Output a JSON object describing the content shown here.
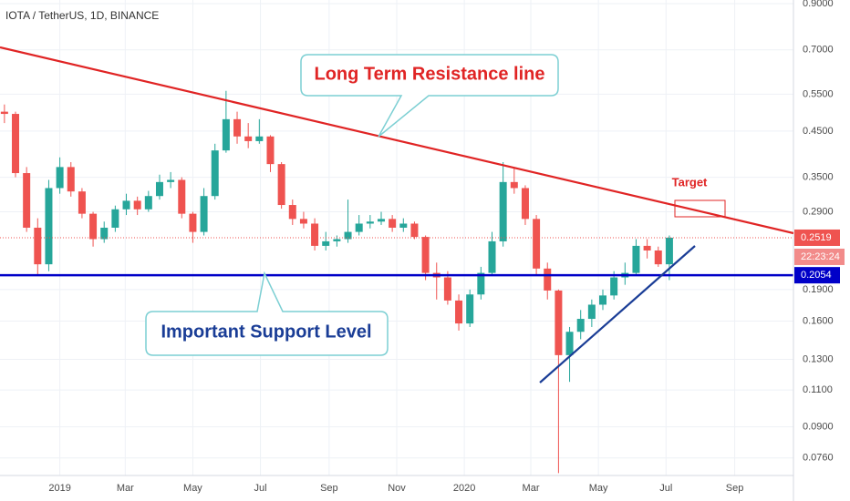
{
  "chart_data": {
    "type": "candlestick",
    "title": "IOTA / TetherUS, 1D, BINANCE",
    "x": [
      -50,
      -40,
      -30,
      -20,
      -10,
      0,
      10,
      20,
      30,
      40,
      50,
      60,
      70,
      80,
      90,
      100,
      110,
      120,
      130,
      140,
      150,
      160,
      170,
      180,
      190,
      200,
      210,
      220,
      230,
      240,
      250,
      260,
      270,
      280,
      290,
      300,
      310,
      320,
      330,
      340,
      350,
      360,
      370,
      380,
      390,
      400,
      410,
      420,
      430,
      440,
      450,
      460,
      470,
      480,
      490,
      500,
      510,
      520,
      530,
      540,
      550
    ],
    "open": [
      0.5,
      0.494,
      0.358,
      0.266,
      0.218,
      0.33,
      0.37,
      0.324,
      0.287,
      0.25,
      0.266,
      0.294,
      0.308,
      0.294,
      0.316,
      0.341,
      0.345,
      0.287,
      0.26,
      0.316,
      0.405,
      0.48,
      0.437,
      0.426,
      0.437,
      0.376,
      0.301,
      0.279,
      0.272,
      0.241,
      0.247,
      0.25,
      0.26,
      0.272,
      0.275,
      0.279,
      0.266,
      0.272,
      0.253,
      0.208,
      0.203,
      0.179,
      0.158,
      0.185,
      0.208,
      0.247,
      0.341,
      0.33,
      0.279,
      0.213,
      0.189,
      0.133,
      0.151,
      0.162,
      0.175,
      0.184,
      0.203,
      0.208,
      0.241,
      0.235,
      0.218
    ],
    "high": [
      0.52,
      0.5,
      0.37,
      0.28,
      0.345,
      0.39,
      0.38,
      0.33,
      0.29,
      0.275,
      0.3,
      0.32,
      0.315,
      0.325,
      0.355,
      0.36,
      0.35,
      0.29,
      0.33,
      0.42,
      0.56,
      0.5,
      0.47,
      0.48,
      0.44,
      0.38,
      0.31,
      0.29,
      0.28,
      0.26,
      0.255,
      0.31,
      0.285,
      0.285,
      0.29,
      0.285,
      0.28,
      0.275,
      0.255,
      0.22,
      0.21,
      0.185,
      0.19,
      0.215,
      0.26,
      0.38,
      0.37,
      0.335,
      0.285,
      0.22,
      0.19,
      0.155,
      0.17,
      0.18,
      0.19,
      0.21,
      0.22,
      0.25,
      0.25,
      0.24,
      0.255
    ],
    "low": [
      0.47,
      0.35,
      0.26,
      0.205,
      0.21,
      0.32,
      0.315,
      0.28,
      0.24,
      0.245,
      0.26,
      0.285,
      0.285,
      0.29,
      0.31,
      0.33,
      0.28,
      0.245,
      0.255,
      0.31,
      0.4,
      0.42,
      0.41,
      0.42,
      0.36,
      0.295,
      0.27,
      0.265,
      0.235,
      0.235,
      0.24,
      0.245,
      0.255,
      0.265,
      0.27,
      0.26,
      0.26,
      0.25,
      0.2,
      0.18,
      0.175,
      0.152,
      0.155,
      0.18,
      0.205,
      0.24,
      0.32,
      0.27,
      0.205,
      0.18,
      0.07,
      0.115,
      0.145,
      0.155,
      0.17,
      0.18,
      0.195,
      0.205,
      0.225,
      0.215,
      0.2
    ],
    "close": [
      0.494,
      0.358,
      0.266,
      0.218,
      0.33,
      0.37,
      0.324,
      0.287,
      0.25,
      0.266,
      0.294,
      0.308,
      0.294,
      0.316,
      0.341,
      0.345,
      0.287,
      0.26,
      0.316,
      0.405,
      0.48,
      0.437,
      0.426,
      0.437,
      0.376,
      0.301,
      0.279,
      0.272,
      0.241,
      0.247,
      0.25,
      0.26,
      0.272,
      0.275,
      0.279,
      0.266,
      0.272,
      0.253,
      0.208,
      0.203,
      0.179,
      0.158,
      0.185,
      0.208,
      0.247,
      0.341,
      0.33,
      0.279,
      0.213,
      0.189,
      0.133,
      0.151,
      0.162,
      0.175,
      0.184,
      0.203,
      0.208,
      0.241,
      0.235,
      0.218,
      0.2519
    ],
    "up_color": "#26a69a",
    "down_color": "#ef5350",
    "log_scale": true,
    "grid": true,
    "xlim": [
      -54,
      662
    ],
    "xticks": [
      {
        "value": 0,
        "label": "2019"
      },
      {
        "value": 59,
        "label": "Mar"
      },
      {
        "value": 120,
        "label": "May"
      },
      {
        "value": 181,
        "label": "Jul"
      },
      {
        "value": 243,
        "label": "Sep"
      },
      {
        "value": 304,
        "label": "Nov"
      },
      {
        "value": 365,
        "label": "2020"
      },
      {
        "value": 425,
        "label": "Mar"
      },
      {
        "value": 486,
        "label": "May"
      },
      {
        "value": 547,
        "label": "Jul"
      },
      {
        "value": 609,
        "label": "Sep"
      }
    ],
    "ylim": [
      0.0691,
      0.918
    ],
    "yticks": [
      {
        "value": 0.9,
        "label": "0.9000"
      },
      {
        "value": 0.7,
        "label": "0.7000"
      },
      {
        "value": 0.55,
        "label": "0.5500"
      },
      {
        "value": 0.45,
        "label": "0.4500"
      },
      {
        "value": 0.35,
        "label": "0.3500"
      },
      {
        "value": 0.29,
        "label": "0.2900"
      },
      {
        "value": 0.19,
        "label": "0.1900"
      },
      {
        "value": 0.16,
        "label": "0.1600"
      },
      {
        "value": 0.13,
        "label": "0.1300"
      },
      {
        "value": 0.11,
        "label": "0.1100"
      },
      {
        "value": 0.09,
        "label": "0.0900"
      },
      {
        "value": 0.076,
        "label": "0.0760"
      }
    ],
    "countdown": "22:23:24",
    "support_level": 0.2054,
    "annotations": {
      "resistance": "Long Term Resistance line",
      "support": "Important Support Level",
      "target": "Target"
    }
  }
}
